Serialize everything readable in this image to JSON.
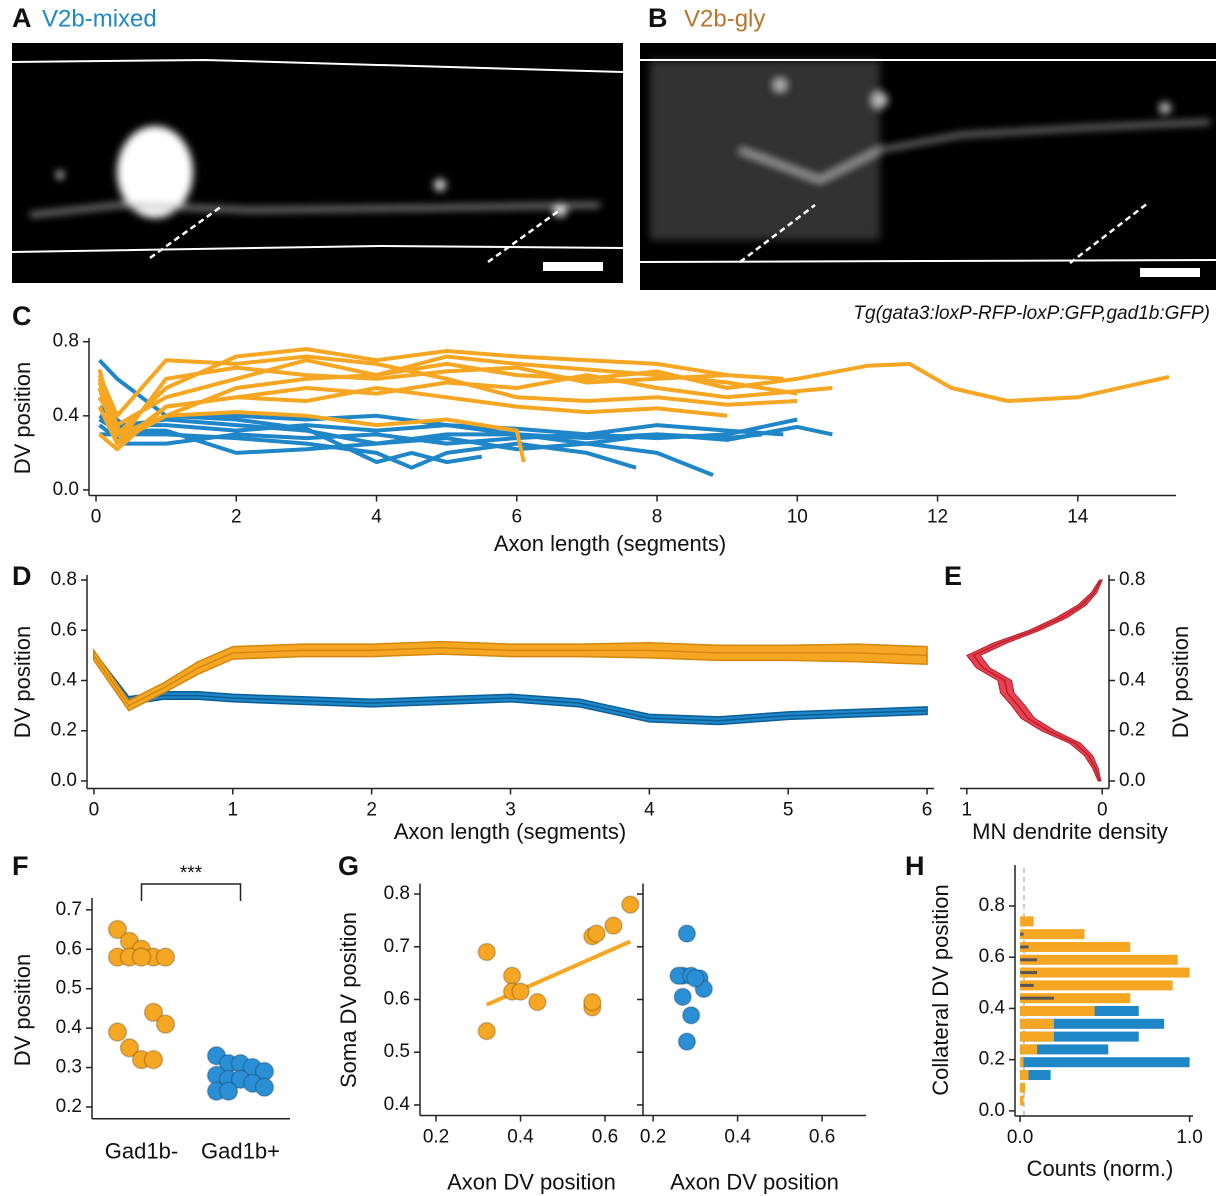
{
  "images": [
    {
      "panel": "A",
      "title": "V2b-mixed"
    },
    {
      "panel": "B",
      "title": "V2b-gly"
    }
  ],
  "annotation": "Tg(gata3:loxP-RFP-loxP:GFP,gad1b:GFP)",
  "chart_data": [
    {
      "type": "line",
      "panel": "C",
      "xlabel": "Axon length (segments)",
      "ylabel": "DV position",
      "xlim": [
        -0.1,
        15.4
      ],
      "ylim": [
        -0.03,
        0.82
      ],
      "xticks": [
        0,
        2,
        4,
        6,
        8,
        10,
        12,
        14
      ],
      "yticks": [
        {
          "value": 0,
          "label": "0.0"
        },
        0.4,
        0.8
      ],
      "series": [
        {
          "color": "#1f86c8",
          "x": [
            0.05,
            0.3,
            1,
            2,
            3,
            4,
            5,
            6,
            7,
            8,
            9,
            10,
            10.5
          ],
          "values": [
            0.7,
            0.6,
            0.4,
            0.4,
            0.38,
            0.4,
            0.35,
            0.3,
            0.28,
            0.3,
            0.27,
            0.34,
            0.3
          ]
        },
        {
          "color": "#1f86c8",
          "x": [
            0.05,
            0.4,
            1,
            2,
            3,
            4,
            5,
            6,
            7,
            8,
            8.8
          ],
          "values": [
            0.45,
            0.35,
            0.38,
            0.35,
            0.32,
            0.25,
            0.28,
            0.22,
            0.25,
            0.2,
            0.08
          ]
        },
        {
          "color": "#1f86c8",
          "x": [
            0.05,
            0.4,
            1,
            2,
            3,
            4,
            4.5,
            5,
            6,
            7,
            7.7
          ],
          "values": [
            0.38,
            0.3,
            0.3,
            0.28,
            0.25,
            0.2,
            0.12,
            0.2,
            0.25,
            0.2,
            0.12
          ]
        },
        {
          "color": "#1f86c8",
          "x": [
            0.05,
            0.3,
            1,
            2,
            3,
            4,
            5,
            6,
            7,
            8,
            9,
            10
          ],
          "values": [
            0.5,
            0.35,
            0.35,
            0.32,
            0.35,
            0.32,
            0.35,
            0.33,
            0.3,
            0.28,
            0.3,
            0.38
          ]
        },
        {
          "color": "#1f86c8",
          "x": [
            0.05,
            0.4,
            1,
            2,
            3,
            4,
            5,
            6,
            7,
            8,
            9,
            9.8
          ],
          "values": [
            0.35,
            0.25,
            0.25,
            0.3,
            0.28,
            0.3,
            0.25,
            0.28,
            0.3,
            0.35,
            0.32,
            0.3
          ]
        },
        {
          "color": "#1f86c8",
          "x": [
            0.05,
            0.4,
            1,
            2,
            3,
            4,
            4.5,
            5,
            5.5
          ],
          "values": [
            0.3,
            0.3,
            0.4,
            0.38,
            0.33,
            0.15,
            0.2,
            0.15,
            0.18
          ]
        },
        {
          "color": "#1f86c8",
          "x": [
            0.05,
            0.4,
            1,
            2,
            3,
            4,
            5,
            6,
            7,
            8,
            9,
            9.5
          ],
          "values": [
            0.4,
            0.32,
            0.32,
            0.2,
            0.22,
            0.25,
            0.3,
            0.3,
            0.25,
            0.3,
            0.28,
            0.3
          ]
        },
        {
          "color": "#f5a623",
          "x": [
            0.05,
            0.3,
            1,
            2,
            3,
            4,
            5,
            6,
            7,
            8,
            9,
            10,
            11,
            11.6,
            12.2,
            13,
            14,
            15.3
          ],
          "values": [
            0.6,
            0.35,
            0.5,
            0.6,
            0.7,
            0.62,
            0.68,
            0.62,
            0.6,
            0.64,
            0.55,
            0.6,
            0.67,
            0.68,
            0.55,
            0.48,
            0.5,
            0.61
          ]
        },
        {
          "color": "#f5a623",
          "x": [
            0.05,
            0.3,
            1,
            2,
            3,
            4,
            5,
            6,
            7,
            8,
            9,
            9.8
          ],
          "values": [
            0.65,
            0.3,
            0.55,
            0.72,
            0.76,
            0.7,
            0.75,
            0.72,
            0.7,
            0.68,
            0.62,
            0.6
          ]
        },
        {
          "color": "#f5a623",
          "x": [
            0.05,
            0.3,
            1,
            2,
            3,
            4,
            5,
            6,
            7,
            8,
            9,
            10.5
          ],
          "values": [
            0.55,
            0.25,
            0.45,
            0.5,
            0.55,
            0.52,
            0.58,
            0.55,
            0.62,
            0.55,
            0.5,
            0.55
          ]
        },
        {
          "color": "#f5a623",
          "x": [
            0.05,
            0.4,
            1,
            2,
            3,
            4,
            5,
            6,
            6.1
          ],
          "values": [
            0.5,
            0.28,
            0.4,
            0.42,
            0.4,
            0.35,
            0.38,
            0.32,
            0.15
          ]
        },
        {
          "color": "#f5a623",
          "x": [
            0.05,
            0.3,
            1,
            2,
            3,
            4,
            5,
            6,
            7,
            8,
            9
          ],
          "values": [
            0.45,
            0.25,
            0.6,
            0.66,
            0.62,
            0.6,
            0.64,
            0.66,
            0.58,
            0.6,
            0.62
          ]
        },
        {
          "color": "#f5a623",
          "x": [
            0.05,
            0.3,
            1,
            2,
            3,
            4,
            5,
            6,
            7,
            8,
            9,
            10
          ],
          "values": [
            0.62,
            0.4,
            0.7,
            0.68,
            0.72,
            0.68,
            0.6,
            0.5,
            0.48,
            0.5,
            0.46,
            0.48
          ]
        },
        {
          "color": "#f5a623",
          "x": [
            0.05,
            0.3,
            1,
            2,
            3,
            4,
            5,
            6,
            7,
            8,
            9
          ],
          "values": [
            0.3,
            0.22,
            0.45,
            0.5,
            0.48,
            0.55,
            0.5,
            0.45,
            0.42,
            0.44,
            0.4
          ]
        },
        {
          "color": "#f5a623",
          "x": [
            0.05,
            0.3,
            1,
            2,
            3,
            4,
            5,
            6,
            7,
            8,
            9,
            10
          ],
          "values": [
            0.58,
            0.3,
            0.4,
            0.55,
            0.6,
            0.62,
            0.72,
            0.68,
            0.65,
            0.62,
            0.58,
            0.52
          ]
        }
      ]
    },
    {
      "type": "band",
      "panel": "D",
      "xlabel": "Axon length (segments)",
      "ylabel": "DV position",
      "xlim": [
        -0.05,
        6.05
      ],
      "ylim": [
        -0.03,
        0.82
      ],
      "xticks": [
        0,
        1,
        2,
        3,
        4,
        5,
        6
      ],
      "yticks": [
        {
          "value": 0,
          "label": "0.0"
        },
        0.2,
        0.4,
        0.6,
        0.8
      ],
      "x": [
        0,
        0.25,
        0.5,
        0.75,
        1,
        1.5,
        2,
        2.5,
        3,
        3.5,
        4,
        4.5,
        5,
        5.5,
        6
      ],
      "series": [
        {
          "color": "#1f86c8",
          "line_color": "#0b5e96",
          "values": [
            0.5,
            0.32,
            0.34,
            0.34,
            0.33,
            0.32,
            0.31,
            0.32,
            0.33,
            0.31,
            0.25,
            0.24,
            0.26,
            0.27,
            0.28
          ],
          "error": [
            0.015,
            0.015,
            0.015,
            0.015,
            0.015,
            0.015,
            0.015,
            0.015,
            0.015,
            0.015,
            0.015,
            0.015,
            0.015,
            0.015,
            0.015
          ]
        },
        {
          "color": "#f5a623",
          "line_color": "#d4880f",
          "values": [
            0.5,
            0.3,
            0.37,
            0.45,
            0.51,
            0.52,
            0.52,
            0.53,
            0.52,
            0.52,
            0.52,
            0.51,
            0.51,
            0.51,
            0.5
          ],
          "error": [
            0.02,
            0.02,
            0.02,
            0.025,
            0.025,
            0.025,
            0.025,
            0.025,
            0.025,
            0.025,
            0.03,
            0.03,
            0.03,
            0.035,
            0.035
          ]
        }
      ]
    },
    {
      "type": "density",
      "panel": "E",
      "xlabel": "MN dendrite density",
      "ylabel": "DV position",
      "xlim": [
        1.05,
        -0.05
      ],
      "ylim": [
        -0.03,
        0.82
      ],
      "xticks": [
        1,
        0
      ],
      "yticks": [
        {
          "value": 0,
          "label": "0.0"
        },
        0.2,
        0.4,
        0.6,
        0.8
      ],
      "y": [
        0,
        0.05,
        0.1,
        0.15,
        0.2,
        0.25,
        0.3,
        0.35,
        0.4,
        0.45,
        0.5,
        0.55,
        0.6,
        0.65,
        0.7,
        0.75,
        0.8
      ],
      "series": [
        {
          "color": "#e8414f",
          "line_color": "#b81f2c",
          "values": [
            0.02,
            0.05,
            0.1,
            0.2,
            0.4,
            0.55,
            0.62,
            0.7,
            0.72,
            0.88,
            0.95,
            0.75,
            0.5,
            0.3,
            0.15,
            0.06,
            0.01
          ],
          "error": [
            0.01,
            0.02,
            0.03,
            0.04,
            0.05,
            0.05,
            0.05,
            0.05,
            0.05,
            0.05,
            0.05,
            0.05,
            0.04,
            0.04,
            0.03,
            0.02,
            0.01
          ]
        }
      ]
    },
    {
      "type": "strip",
      "panel": "F",
      "ylabel": "DV position",
      "significance": "***",
      "categories": [
        "Gad1b-",
        "Gad1b+"
      ],
      "ylim": [
        0.17,
        0.73
      ],
      "yticks": [
        0.2,
        0.3,
        0.4,
        0.5,
        0.6,
        0.7
      ],
      "series": [
        {
          "color": "#f5a623",
          "values": [
            0.65,
            0.62,
            0.6,
            0.58,
            0.58,
            0.58,
            0.58,
            0.58,
            0.44,
            0.41,
            0.39,
            0.35,
            0.32,
            0.32
          ]
        },
        {
          "color": "#2b8fd6",
          "values": [
            0.33,
            0.31,
            0.31,
            0.3,
            0.29,
            0.28,
            0.27,
            0.27,
            0.26,
            0.25,
            0.24,
            0.24
          ]
        }
      ]
    },
    {
      "type": "scatter",
      "panel": "G",
      "ylabel": "Soma DV position",
      "ylim": [
        0.38,
        0.82
      ],
      "yticks": [
        0.4,
        0.5,
        0.6,
        0.7,
        0.8
      ],
      "subplots": [
        {
          "xlabel": "Axon DV position",
          "xlim": [
            0.162,
            0.69
          ],
          "xticks": [
            0.2,
            0.4,
            0.6
          ],
          "series": [
            {
              "color": "#f5a623",
              "x": [
                0.32,
                0.32,
                0.38,
                0.38,
                0.4,
                0.44,
                0.57,
                0.57,
                0.57,
                0.58,
                0.62,
                0.66
              ],
              "values": [
                0.54,
                0.69,
                0.645,
                0.615,
                0.615,
                0.595,
                0.585,
                0.595,
                0.72,
                0.725,
                0.74,
                0.78
              ],
              "fit": {
                "x": [
                  0.32,
                  0.66
                ],
                "values": [
                  0.59,
                  0.71
                ]
              }
            }
          ]
        },
        {
          "xlabel": "Axon DV position",
          "xlim": [
            0.176,
            0.704
          ],
          "xticks": [
            0.2,
            0.4,
            0.6
          ],
          "series": [
            {
              "color": "#2b8fd6",
              "x": [
                0.27,
                0.27,
                0.26,
                0.28,
                0.29,
                0.31,
                0.32,
                0.29,
                0.28,
                0.3
              ],
              "values": [
                0.605,
                0.645,
                0.645,
                0.725,
                0.645,
                0.64,
                0.62,
                0.57,
                0.52,
                0.64
              ]
            }
          ]
        }
      ]
    },
    {
      "type": "hbar",
      "panel": "H",
      "xlabel": "Counts (norm.)",
      "ylabel": "Collateral DV position",
      "xlim": [
        -0.03,
        1.02
      ],
      "ylim": [
        -0.02,
        0.96
      ],
      "xticks": [
        {
          "value": 0,
          "label": "0.0"
        },
        {
          "value": 1,
          "label": "1.0"
        }
      ],
      "yticks": [
        {
          "value": 0,
          "label": "0.0"
        },
        0.2,
        0.4,
        0.6,
        0.8
      ],
      "y": [
        0.74,
        0.69,
        0.64,
        0.59,
        0.54,
        0.49,
        0.44,
        0.39,
        0.34,
        0.29,
        0.24,
        0.19,
        0.14,
        0.09,
        0.04
      ],
      "series": [
        {
          "color": "#1f86c8",
          "values": [
            0,
            0,
            0,
            0,
            0,
            0,
            0,
            0.7,
            0.85,
            0.7,
            0.52,
            1.0,
            0.18,
            0,
            0
          ]
        },
        {
          "color": "#f5a623",
          "values": [
            0.08,
            0.38,
            0.65,
            0.93,
            1.0,
            0.9,
            0.65,
            0.44,
            0.2,
            0.2,
            0.1,
            0.02,
            0.05,
            0.03,
            0.02
          ]
        },
        {
          "color": "#555555",
          "values": [
            0,
            0.02,
            0.05,
            0.1,
            0.1,
            0.08,
            0.2,
            0,
            0,
            0,
            0,
            0,
            0,
            0,
            0
          ]
        }
      ]
    }
  ]
}
